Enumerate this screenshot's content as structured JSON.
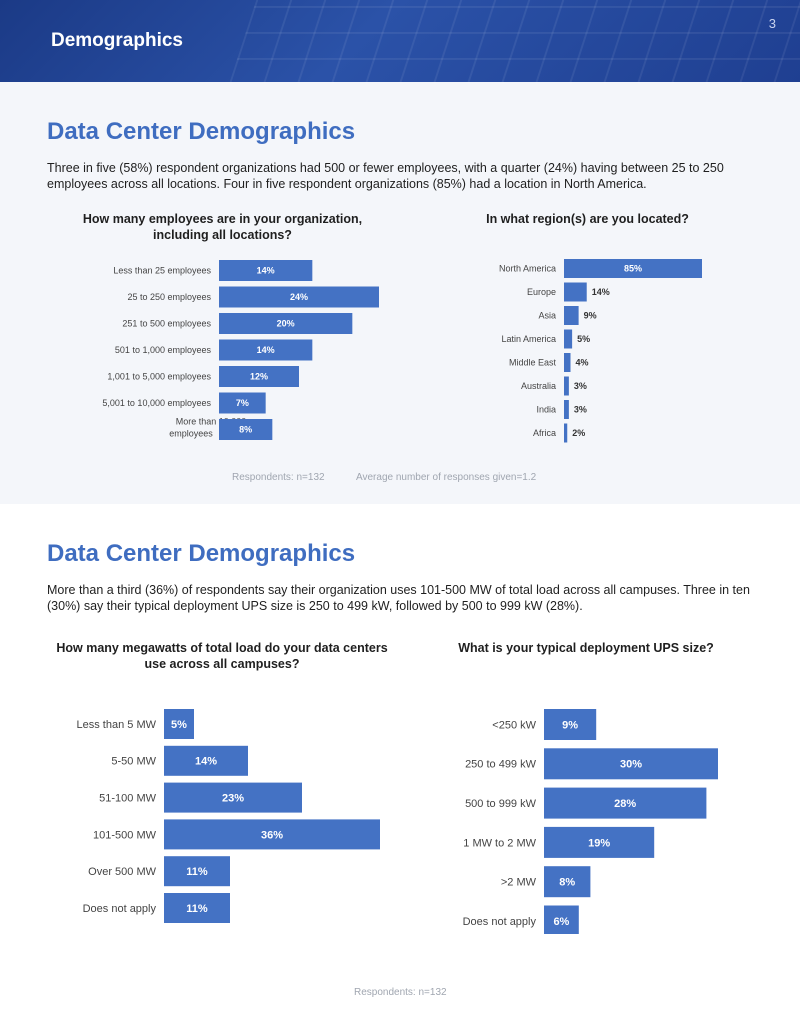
{
  "header": {
    "title": "Demographics",
    "page_number": "3"
  },
  "section1": {
    "title": "Data Center Demographics",
    "description": "Three in five (58%) respondent organizations had 500 or fewer employees, with a quarter (24%) having between 25 to 250 employees across all locations. Four in five respondent organizations (85%) had a location in North America.",
    "footnote_respondents": "Respondents: n=132",
    "footnote_average": "Average number of responses given=1.2"
  },
  "section2": {
    "title": "Data Center Demographics",
    "description": "More than a third (36%) of respondents say their organization uses 101-500 MW of total load across all campuses. Three in ten (30%) say their typical deployment UPS size is 250 to 499 kW, followed by 500 to 999 kW (28%).",
    "footnote_respondents": "Respondents: n=132"
  },
  "chart_data": [
    {
      "type": "bar",
      "orientation": "horizontal",
      "title": "How many employees are in your organization, including all locations?",
      "categories": [
        "Less than 25 employees",
        "25 to 250 employees",
        "251 to 500 employees",
        "501 to 1,000 employees",
        "1,001 to 5,000 employees",
        "5,001 to 10,000 employees",
        "More than 10,000 employees"
      ],
      "values": [
        14,
        24,
        20,
        14,
        12,
        7,
        8
      ],
      "value_suffix": "%",
      "xlim": [
        0,
        30
      ]
    },
    {
      "type": "bar",
      "orientation": "horizontal",
      "title": "In what region(s) are you located?",
      "categories": [
        "North America",
        "Europe",
        "Asia",
        "Latin America",
        "Middle East",
        "Australia",
        "India",
        "Africa"
      ],
      "values": [
        85,
        14,
        9,
        5,
        4,
        3,
        3,
        2
      ],
      "value_suffix": "%",
      "xlim": [
        0,
        100
      ]
    },
    {
      "type": "bar",
      "orientation": "horizontal",
      "title": "How many megawatts of total load do your data centers use across all campuses?",
      "categories": [
        "Less than 5 MW",
        "5-50 MW",
        "51-100 MW",
        "101-500 MW",
        "Over 500 MW",
        "Does not apply"
      ],
      "values": [
        5,
        14,
        23,
        36,
        11,
        11
      ],
      "value_suffix": "%",
      "xlim": [
        0,
        40
      ]
    },
    {
      "type": "bar",
      "orientation": "horizontal",
      "title": "What is your typical deployment UPS size?",
      "categories": [
        "<250 kW",
        "250 to 499 kW",
        "500 to 999 kW",
        "1 MW to 2 MW",
        ">2 MW",
        "Does not apply"
      ],
      "values": [
        9,
        30,
        28,
        19,
        8,
        6
      ],
      "value_suffix": "%",
      "xlim": [
        0,
        35
      ]
    }
  ],
  "colors": {
    "bar": "#4472c4",
    "title": "#3f6dc0",
    "header": "#1f3f91"
  }
}
